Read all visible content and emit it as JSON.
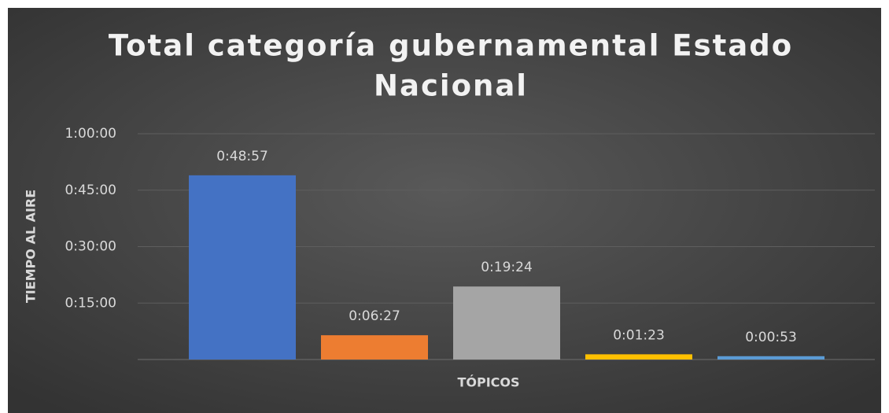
{
  "chart_data": {
    "type": "bar",
    "title": "Total categoría gubernamental Estado Nacional",
    "y_label": "TIEMPO AL AIRE",
    "x_label": "TÓPICOS",
    "categories": [
      null,
      null,
      null,
      null,
      null
    ],
    "values": [
      2937,
      387,
      1164,
      83,
      53
    ],
    "value_labels": [
      "0:48:57",
      "0:06:27",
      "0:19:24",
      "0:01:23",
      "0:00:53"
    ],
    "colors": [
      "#4472c4",
      "#ed7d31",
      "#a5a5a5",
      "#ffc000",
      "#5b9bd5"
    ],
    "ylim": [
      0,
      3600
    ],
    "yticks": [
      {
        "value": 900,
        "label": "0:15:00"
      },
      {
        "value": 1800,
        "label": "0:30:00"
      },
      {
        "value": 2700,
        "label": "0:45:00"
      },
      {
        "value": 3600,
        "label": "1:00:00"
      }
    ],
    "grid": true
  }
}
